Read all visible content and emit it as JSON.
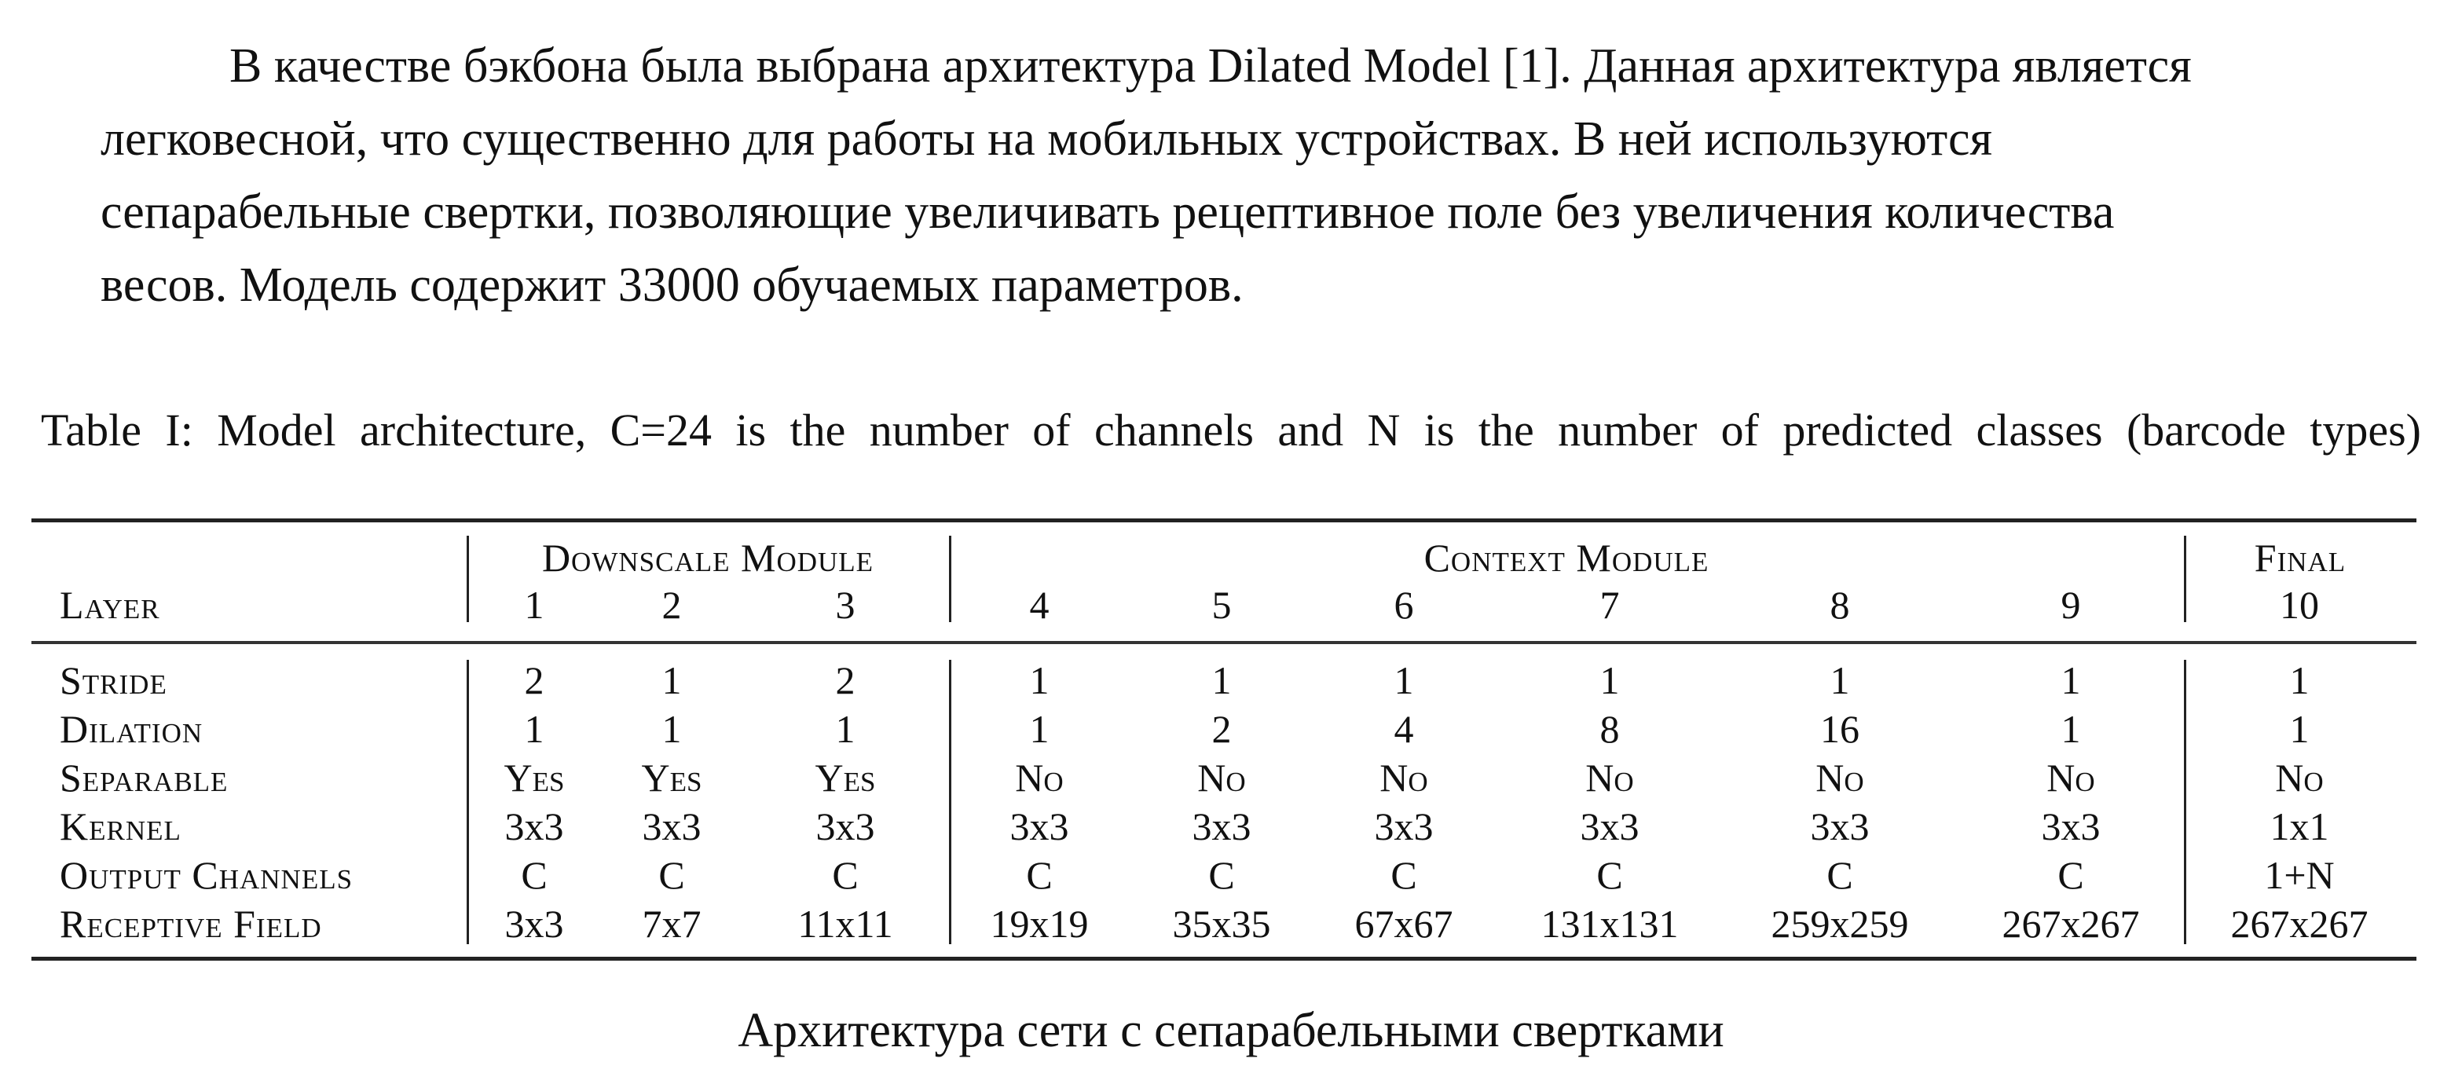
{
  "paragraph": {
    "lines": [
      "В качестве бэкбона была выбрана архитектура Dilated Model [1]. Данная архитектура является",
      "легковесной, что существенно для работы на мобильных устройствах. В ней используются",
      "сепарабельные свертки, позволяющие увеличивать рецептивное поле без увеличения количества",
      "весов. Модель содержит 33000 обучаемых параметров."
    ]
  },
  "table": {
    "caption": "Table I: Model architecture, C=24 is the number of channels and N is the number of predicted classes (barcode types)",
    "groups": {
      "downscale": "Downscale Module",
      "context": "Context Module",
      "final": "Final"
    },
    "layer_label": "Layer",
    "layers": [
      "1",
      "2",
      "3",
      "4",
      "5",
      "6",
      "7",
      "8",
      "9",
      "10"
    ],
    "rows": [
      {
        "label": "Stride",
        "values": [
          "2",
          "1",
          "2",
          "1",
          "1",
          "1",
          "1",
          "1",
          "1",
          "1"
        ]
      },
      {
        "label": "Dilation",
        "values": [
          "1",
          "1",
          "1",
          "1",
          "2",
          "4",
          "8",
          "16",
          "1",
          "1"
        ]
      },
      {
        "label": "Separable",
        "values": [
          "Yes",
          "Yes",
          "Yes",
          "No",
          "No",
          "No",
          "No",
          "No",
          "No",
          "No"
        ]
      },
      {
        "label": "Kernel",
        "values": [
          "3x3",
          "3x3",
          "3x3",
          "3x3",
          "3x3",
          "3x3",
          "3x3",
          "3x3",
          "3x3",
          "1x1"
        ]
      },
      {
        "label": "Output Channels",
        "values": [
          "C",
          "C",
          "C",
          "C",
          "C",
          "C",
          "C",
          "C",
          "C",
          "1+N"
        ]
      },
      {
        "label": "Receptive Field",
        "values": [
          "3x3",
          "7x7",
          "11x11",
          "19x19",
          "35x35",
          "67x67",
          "131x131",
          "259x259",
          "267x267",
          "267x267"
        ]
      }
    ]
  },
  "figure_caption": "Архитектура сети с сепарабельными свертками"
}
